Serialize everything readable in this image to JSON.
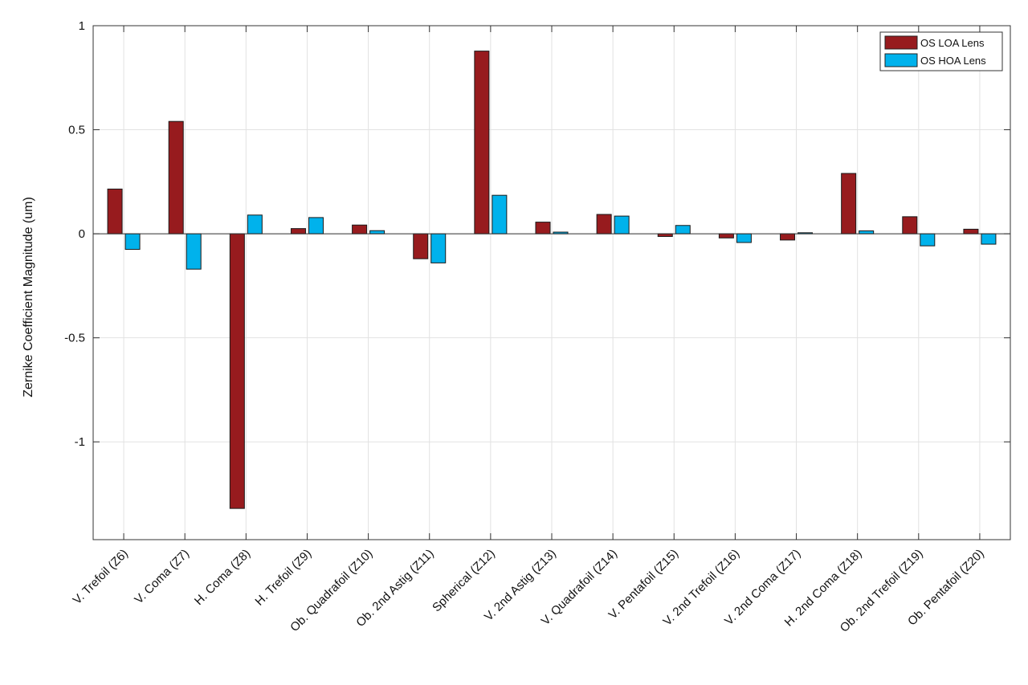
{
  "chart_data": {
    "type": "bar",
    "title": "",
    "xlabel": "",
    "ylabel": "Zernike Coefficient Magnitude (um)",
    "ylim": [
      -1.47,
      1.0
    ],
    "yticks": [
      1,
      0.5,
      0,
      -0.5,
      -1
    ],
    "ytick_labels": [
      "1",
      "0.5",
      "0",
      "-0.5",
      "-1"
    ],
    "grid": true,
    "legend_position": "top-right",
    "categories": [
      "V. Trefoil (Z6)",
      "V. Coma (Z7)",
      "H. Coma (Z8)",
      "H. Trefoil (Z9)",
      "Ob. Quadrafoil (Z10)",
      "Ob. 2nd Astig (Z11)",
      "Spherical (Z12)",
      "V. 2nd Astig (Z13)",
      "V. Quadrafoil (Z14)",
      "V. Pentafoil (Z15)",
      "V. 2nd Trefoil (Z16)",
      "V. 2nd Coma (Z17)",
      "H. 2nd Coma (Z18)",
      "Ob. 2nd Trefoil (Z19)",
      "Ob. Pentafoil (Z20)"
    ],
    "series": [
      {
        "name": "OS LOA Lens",
        "color": "#971b1e",
        "values": [
          0.215,
          0.54,
          -1.32,
          0.025,
          0.042,
          -0.12,
          0.878,
          0.056,
          0.093,
          -0.013,
          -0.02,
          -0.03,
          0.29,
          0.082,
          0.022
        ]
      },
      {
        "name": "OS HOA Lens",
        "color": "#00b2ec",
        "values": [
          -0.075,
          -0.17,
          0.09,
          0.078,
          0.015,
          -0.14,
          0.185,
          0.008,
          0.085,
          0.04,
          -0.042,
          0.005,
          0.014,
          -0.058,
          -0.05
        ]
      }
    ]
  }
}
